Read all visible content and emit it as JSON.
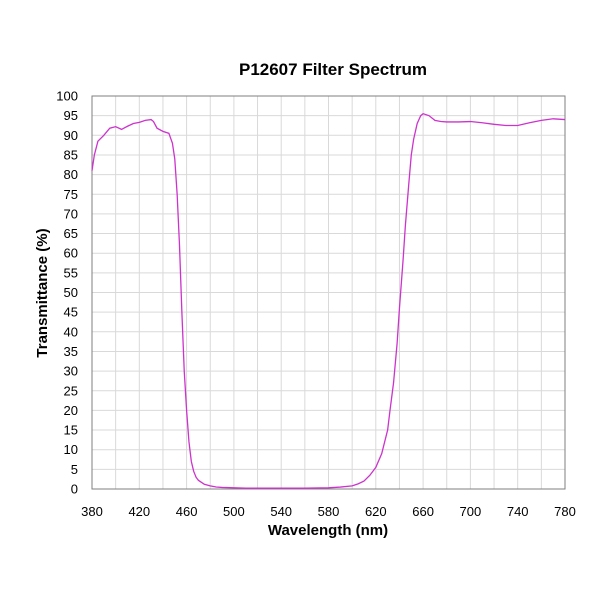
{
  "chart_data": {
    "type": "line",
    "title": "P12607 Filter Spectrum",
    "xlabel": "Wavelength (nm)",
    "ylabel": "Transmittance (%)",
    "xlim": [
      380,
      780
    ],
    "ylim": [
      0,
      100
    ],
    "xticks": [
      380,
      420,
      460,
      500,
      540,
      580,
      620,
      660,
      700,
      740,
      780
    ],
    "yticks": [
      0,
      5,
      10,
      15,
      20,
      25,
      30,
      35,
      40,
      45,
      50,
      55,
      60,
      65,
      70,
      75,
      80,
      85,
      90,
      95,
      100
    ],
    "grid": true,
    "line_color": "#cc33cc",
    "series": [
      {
        "x": [
          380,
          382,
          385,
          390,
          395,
          400,
          405,
          410,
          415,
          420,
          425,
          430,
          432,
          435,
          440,
          445,
          448,
          450,
          452,
          454,
          456,
          458,
          460,
          462,
          464,
          466,
          468,
          470,
          475,
          480,
          485,
          490,
          500,
          510,
          520,
          540,
          560,
          580,
          590,
          600,
          605,
          610,
          615,
          620,
          625,
          630,
          632,
          635,
          638,
          640,
          643,
          645,
          648,
          650,
          652,
          655,
          658,
          660,
          665,
          670,
          675,
          680,
          690,
          700,
          710,
          720,
          730,
          740,
          750,
          760,
          770,
          780
        ],
        "y": [
          81,
          85,
          88.5,
          90,
          91.8,
          92.2,
          91.5,
          92.3,
          93,
          93.3,
          93.8,
          94,
          93.5,
          91.8,
          91,
          90.5,
          88,
          84,
          75,
          62,
          45,
          30,
          20,
          12,
          7,
          4.5,
          3,
          2.2,
          1.2,
          0.8,
          0.5,
          0.4,
          0.3,
          0.2,
          0.2,
          0.2,
          0.2,
          0.3,
          0.5,
          0.8,
          1.3,
          2,
          3.5,
          5.5,
          9,
          15,
          20,
          27,
          37,
          46,
          58,
          67,
          78,
          85,
          89,
          93,
          95,
          95.5,
          95,
          93.8,
          93.5,
          93.4,
          93.4,
          93.5,
          93.2,
          92.8,
          92.5,
          92.5,
          93.2,
          93.8,
          94.2,
          94
        ]
      }
    ]
  }
}
